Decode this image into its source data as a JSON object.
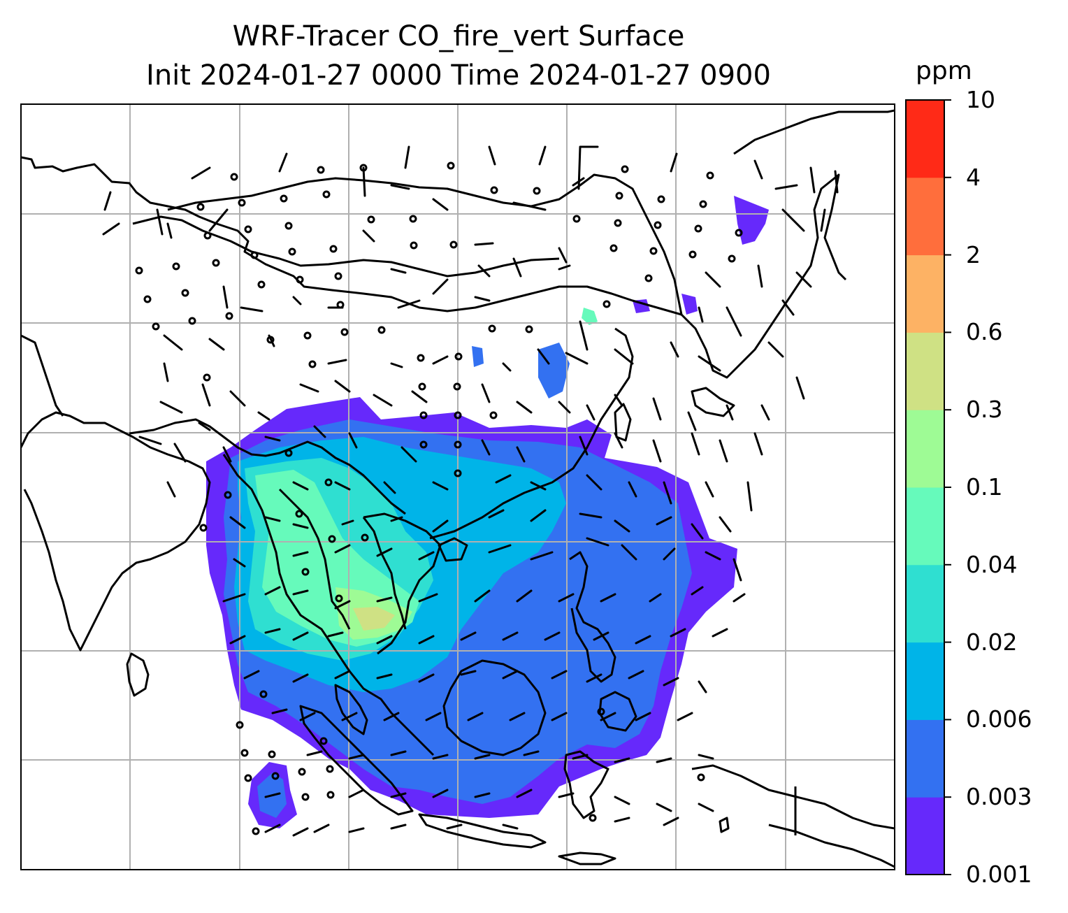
{
  "title": {
    "line1": "WRF-Tracer CO_fire_vert Surface",
    "line2": "Init 2024-01-27 0000 Time 2024-01-27 0900"
  },
  "colorbar": {
    "units": "ppm",
    "levels": [
      "0.001",
      "0.003",
      "0.006",
      "0.02",
      "0.04",
      "0.1",
      "0.3",
      "0.6",
      "2",
      "4",
      "10"
    ],
    "colors": [
      "#6629fb",
      "#3371f1",
      "#00b4e8",
      "#2fdfd1",
      "#66fabb",
      "#9efb95",
      "#cfe184",
      "#fdb264",
      "#ff6e3c",
      "#ff2a17"
    ]
  },
  "map": {
    "field": "CO_fire_vert",
    "level": "Surface",
    "grid": true,
    "overlays": [
      "coastlines",
      "country-borders",
      "wind-barbs",
      "calm-circles"
    ]
  }
}
